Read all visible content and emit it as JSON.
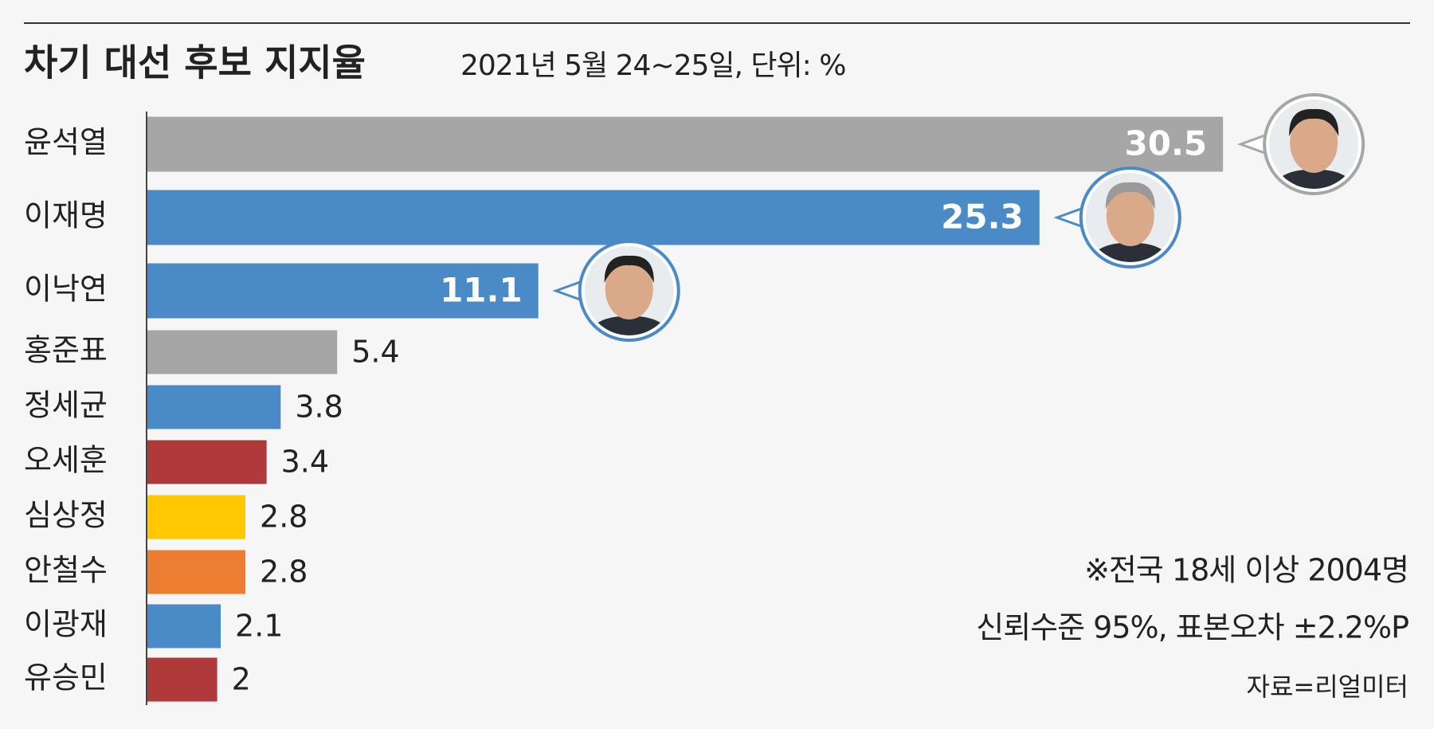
{
  "chart_data": {
    "type": "bar",
    "orientation": "horizontal",
    "title": "차기 대선 후보 지지율",
    "subtitle": "2021년 5월 24~25일, 단위: %",
    "categories": [
      "윤석열",
      "이재명",
      "이낙연",
      "홍준표",
      "정세균",
      "오세훈",
      "심상정",
      "안철수",
      "이광재",
      "유승민"
    ],
    "values": [
      30.5,
      25.3,
      11.1,
      5.4,
      3.8,
      3.4,
      2.8,
      2.8,
      2.1,
      2
    ],
    "colors": [
      "#a6a6a6",
      "#4a8bc7",
      "#4a8bc7",
      "#a6a6a6",
      "#4a8bc7",
      "#b03a3a",
      "#ffc800",
      "#ed7d31",
      "#4a8bc7",
      "#b03a3a"
    ],
    "notes": [
      "※전국 18세 이상 2004명",
      "신뢰수준 95%, 표본오차 ±2.2%P"
    ],
    "source": "자료=리얼미터"
  }
}
